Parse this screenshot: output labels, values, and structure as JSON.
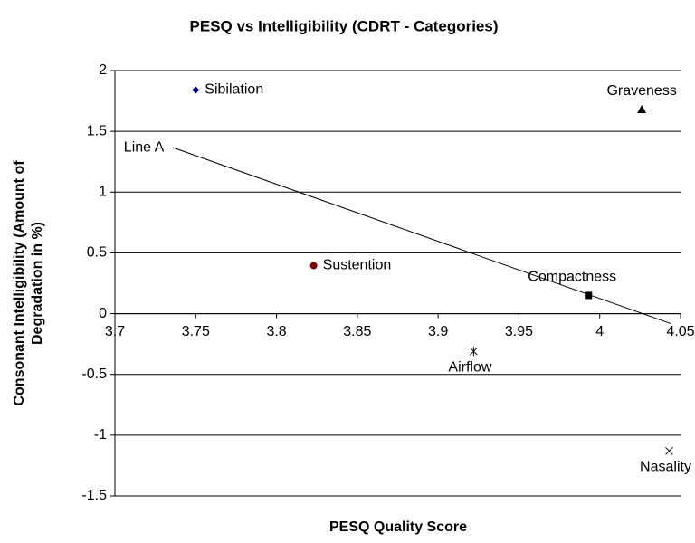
{
  "chart_data": {
    "type": "scatter",
    "title": "PESQ vs Intelligibility (CDRT - Categories)",
    "xlabel": "PESQ Quality Score",
    "ylabel_lines": [
      "Consonant Intelligibility (Amount of",
      "Degradation in %)"
    ],
    "xlim": [
      3.7,
      4.05
    ],
    "xticks": [
      3.7,
      3.75,
      3.8,
      3.85,
      3.9,
      3.95,
      4,
      4.05
    ],
    "ylim": [
      -1.5,
      2
    ],
    "yticks": [
      -1.5,
      -1,
      -0.5,
      0,
      0.5,
      1,
      1.5,
      2
    ],
    "grid": true,
    "series": [
      {
        "name": "Sibilation",
        "color": "#000080",
        "marker": "diamond",
        "label_pos": "right",
        "x": [
          3.75
        ],
        "y": [
          1.84
        ]
      },
      {
        "name": "Graveness",
        "color": "#000000",
        "marker": "triangle",
        "label_pos": "above-left",
        "x": [
          4.026
        ],
        "y": [
          1.68
        ]
      },
      {
        "name": "Sustention",
        "color": "#800000",
        "marker": "circle",
        "label_pos": "right",
        "x": [
          3.823
        ],
        "y": [
          0.395
        ]
      },
      {
        "name": "Compactness",
        "color": "#000000",
        "marker": "square",
        "label_pos": "above",
        "x": [
          3.993
        ],
        "y": [
          0.15
        ]
      },
      {
        "name": "Airflow",
        "color": "#000000",
        "marker": "asterisk",
        "label_pos": "below",
        "x": [
          3.922
        ],
        "y": [
          -0.31
        ]
      },
      {
        "name": "Nasality",
        "color": "#000000",
        "marker": "x",
        "label_pos": "below",
        "x": [
          4.043
        ],
        "y": [
          -1.13
        ]
      }
    ],
    "trendline": {
      "name": "Line A",
      "color": "#000000",
      "x": [
        3.736,
        4.044
      ],
      "y": [
        1.366,
        -0.082
      ]
    }
  }
}
